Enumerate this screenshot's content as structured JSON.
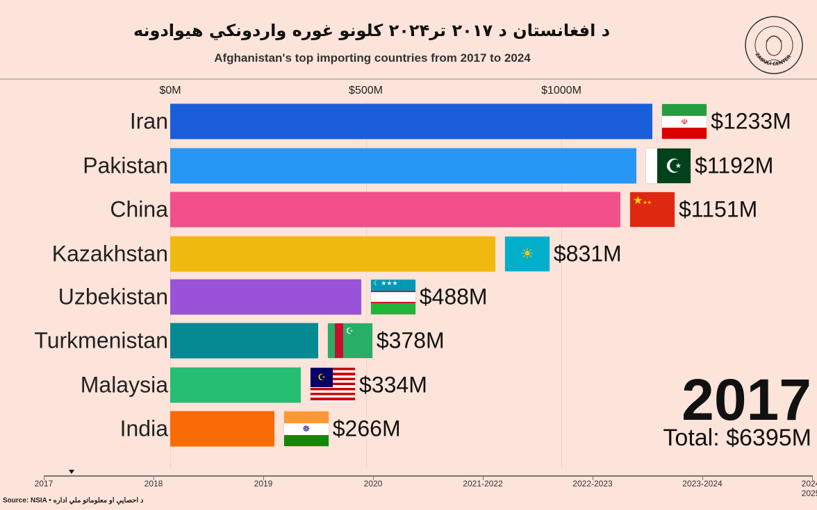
{
  "header": {
    "title_pashto": "د افغانستان د ۲۰۱۷ تر۲۰۲۴ کلونو غوره واردونکي هیوادونه",
    "title_english": "Afghanistan's top importing countries from 2017 to 2024",
    "logo_text": "ZABULI CENTER"
  },
  "chart_data": {
    "type": "bar",
    "orientation": "horizontal",
    "title": "Afghanistan's top importing countries from 2017 to 2024",
    "categories": [
      "Iran",
      "Pakistan",
      "China",
      "Kazakhstan",
      "Uzbekistan",
      "Turkmenistan",
      "Malaysia",
      "India"
    ],
    "values": [
      1233,
      1192,
      1151,
      831,
      488,
      378,
      334,
      266
    ],
    "value_labels": [
      "$1233M",
      "$1192M",
      "$1151M",
      "$831M",
      "$488M",
      "$378M",
      "$334M",
      "$266M"
    ],
    "colors": [
      "#1a5fd9",
      "#2797f5",
      "#f2508a",
      "#f0b90f",
      "#9a53d8",
      "#058a94",
      "#26be73",
      "#f86b05"
    ],
    "flags": [
      "iran",
      "pakistan",
      "china",
      "kazakhstan",
      "uzbekistan",
      "turkmenistan",
      "malaysia",
      "india"
    ],
    "x_ticks": [
      0,
      500,
      1000
    ],
    "x_tick_labels": [
      "$0M",
      "$500M",
      "$1000M"
    ],
    "xlim": [
      0,
      1233
    ],
    "grid": true,
    "current_year": "2017",
    "total_label": "Total: $6395M"
  },
  "timeline": {
    "labels": [
      "2017",
      "2018",
      "2019",
      "2020",
      "2021-2022",
      "2022-2023",
      "2023-2024",
      "2024-2025"
    ],
    "position": 0.25
  },
  "source": "Source: NSIA • د احصایې او معلوماتو ملي اداره"
}
